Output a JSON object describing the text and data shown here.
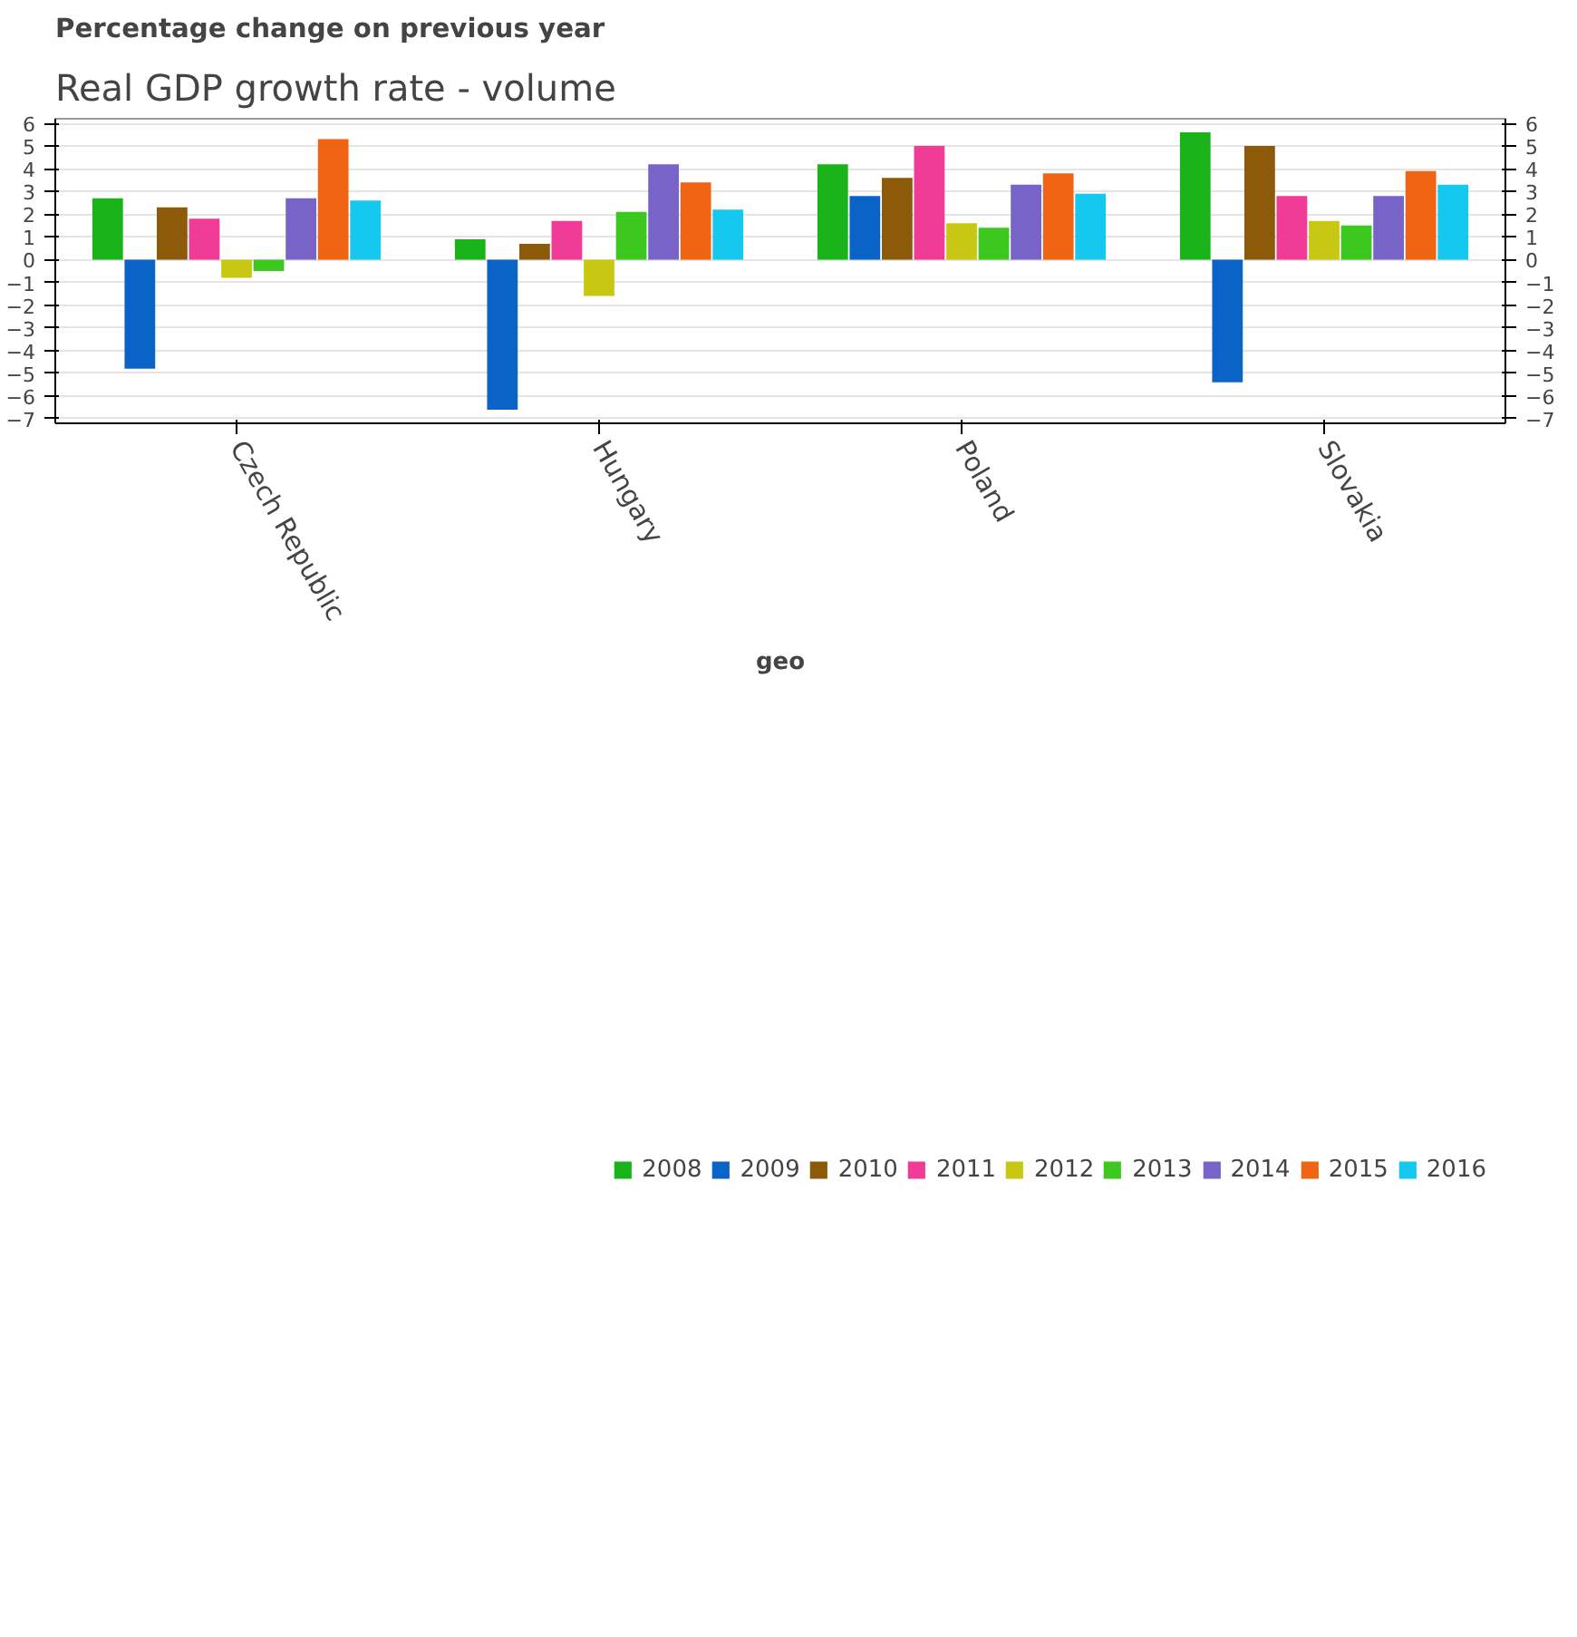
{
  "chart_data": {
    "type": "bar",
    "title": "Real GDP growth rate - volume",
    "subtitle": "Percentage change on previous year",
    "xlabel": "geo",
    "categories": [
      "Czech Republic",
      "Hungary",
      "Poland",
      "Slovakia"
    ],
    "series": [
      {
        "name": "2008",
        "color": "#1ab41a",
        "values": [
          2.7,
          0.9,
          4.2,
          5.6
        ]
      },
      {
        "name": "2009",
        "color": "#0a64c8",
        "values": [
          -4.8,
          -6.6,
          2.8,
          -5.4
        ]
      },
      {
        "name": "2010",
        "color": "#8c5a08",
        "values": [
          2.3,
          0.7,
          3.6,
          5.0
        ]
      },
      {
        "name": "2011",
        "color": "#f03c96",
        "values": [
          1.8,
          1.7,
          5.0,
          2.8
        ]
      },
      {
        "name": "2012",
        "color": "#c8c814",
        "values": [
          -0.8,
          -1.6,
          1.6,
          1.7
        ]
      },
      {
        "name": "2013",
        "color": "#3cc81e",
        "values": [
          -0.5,
          2.1,
          1.4,
          1.5
        ]
      },
      {
        "name": "2014",
        "color": "#7864c8",
        "values": [
          2.7,
          4.2,
          3.3,
          2.8
        ]
      },
      {
        "name": "2015",
        "color": "#f06414",
        "values": [
          5.3,
          3.4,
          3.8,
          3.9
        ]
      },
      {
        "name": "2016",
        "color": "#14c8f0",
        "values": [
          2.6,
          2.2,
          2.9,
          3.3
        ]
      }
    ],
    "ylim": [
      -7.2,
      6.2
    ],
    "yticks": [
      -7,
      -6,
      -5,
      -4,
      -3,
      -2,
      -1,
      0,
      1,
      2,
      3,
      4,
      5,
      6
    ],
    "y2lim": [
      -7.2,
      6.2
    ],
    "y2ticks": [
      -7,
      -6,
      -5,
      -4,
      -3,
      -2,
      -1,
      0,
      1,
      2,
      3,
      4,
      5,
      6
    ],
    "grid": "y",
    "legend": "bottom"
  }
}
